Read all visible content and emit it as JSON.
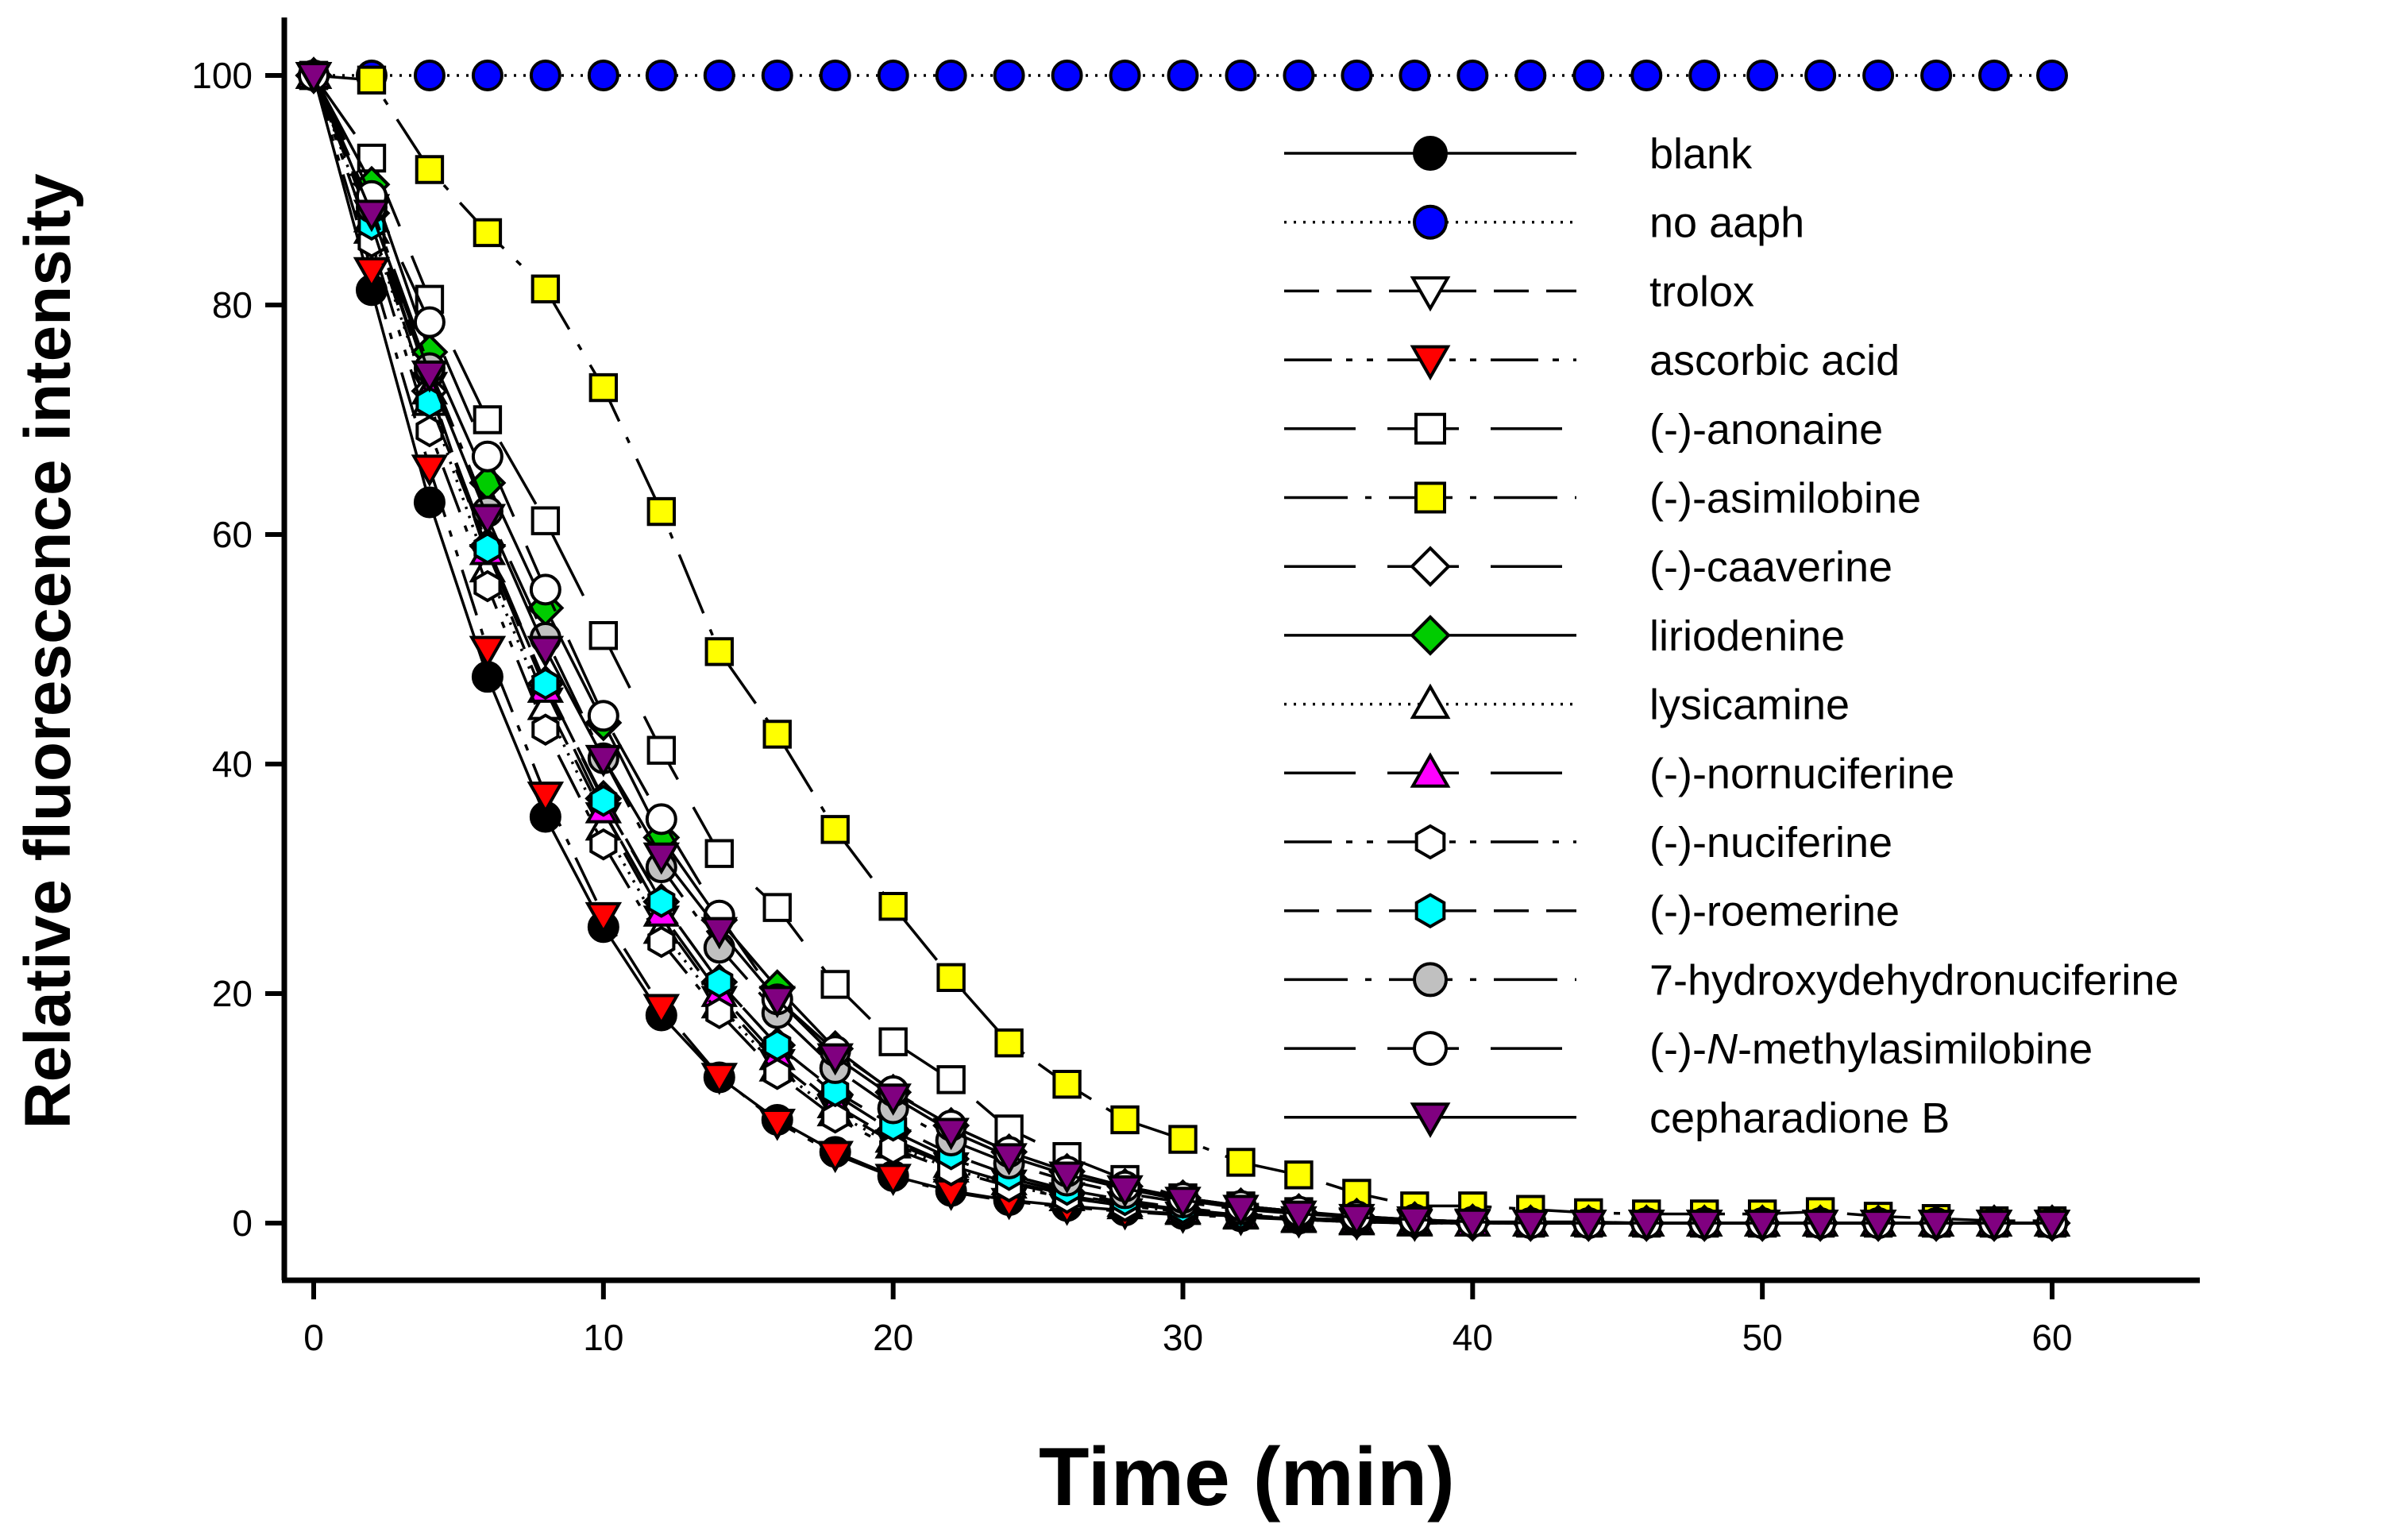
{
  "chart_data": {
    "type": "line",
    "title": "",
    "xlabel": "Time (min)",
    "ylabel": "Relative fluorescence intensity",
    "xlim": [
      -1,
      65
    ],
    "ylim": [
      -5,
      105
    ],
    "xticks": [
      0,
      10,
      20,
      30,
      40,
      50,
      60
    ],
    "yticks": [
      0,
      20,
      40,
      60,
      80,
      100
    ],
    "grid": false,
    "legend_position": "top-right",
    "x": [
      0,
      2,
      4,
      6,
      8,
      10,
      12,
      14,
      16,
      18,
      20,
      22,
      24,
      26,
      28,
      30,
      32,
      34,
      36,
      38,
      40,
      42,
      44,
      46,
      48,
      50,
      52,
      54,
      56,
      58,
      60
    ],
    "series": [
      {
        "name": "blank",
        "marker": "circle",
        "color": "#000000",
        "dash": "solid",
        "values": [
          100,
          81.3,
          62.8,
          47.6,
          35.4,
          25.8,
          18.1,
          12.7,
          9.0,
          6.2,
          4.1,
          2.8,
          2.0,
          1.5,
          1.1,
          0.8,
          0.6,
          0.4,
          0.3,
          0.2,
          0.1,
          0.1,
          0.1,
          0,
          0,
          0,
          0,
          0,
          0,
          0,
          0
        ]
      },
      {
        "name": "no aaph",
        "marker": "circle",
        "color": "#0000ff",
        "dash": "dotted",
        "values": [
          100,
          100,
          100,
          100,
          100,
          100,
          100,
          100,
          100,
          100,
          100,
          100,
          100,
          100,
          100,
          100,
          100,
          100,
          100,
          100,
          100,
          100,
          100,
          100,
          100,
          100,
          100,
          100,
          100,
          100,
          100
        ]
      },
      {
        "name": "trolox",
        "marker": "triangle-down",
        "color": "#ffffff",
        "dash": "dash",
        "values": [
          100,
          88.5,
          73.0,
          58.0,
          45.5,
          35.5,
          26.5,
          19.5,
          14.0,
          10.0,
          7.0,
          5.0,
          3.5,
          2.4,
          1.6,
          1.1,
          0.6,
          0.3,
          0.1,
          0,
          0,
          0,
          0,
          0,
          0,
          0,
          0,
          0,
          0,
          0,
          0
        ]
      },
      {
        "name": "ascorbic acid",
        "marker": "triangle-down",
        "color": "#ff0000",
        "dash": "dash-dot-dot",
        "values": [
          100,
          83.0,
          65.8,
          50.0,
          37.3,
          26.8,
          18.8,
          12.8,
          8.8,
          6.0,
          4.0,
          2.7,
          1.9,
          1.4,
          1.0,
          0.7,
          0.5,
          0.3,
          0.2,
          0.1,
          0.1,
          0,
          0,
          0,
          0,
          0,
          0,
          0,
          0,
          0,
          0
        ]
      },
      {
        "name": "(-)-anonaine",
        "marker": "square",
        "color": "#ffffff",
        "dash": "long-dash",
        "values": [
          100,
          92.8,
          80.5,
          70.0,
          61.2,
          51.2,
          41.2,
          32.2,
          27.5,
          20.8,
          15.8,
          12.5,
          8.2,
          5.8,
          3.8,
          2.2,
          1.5,
          1.0,
          0.5,
          0.2,
          0.1,
          0,
          0,
          0,
          0,
          0,
          0,
          0,
          0,
          0,
          0
        ]
      },
      {
        "name": "(-)-asimilobine",
        "marker": "square",
        "color": "#ffff00",
        "dash": "long-dash-dot",
        "values": [
          100,
          99.6,
          91.8,
          86.3,
          81.4,
          72.8,
          62.0,
          49.8,
          42.6,
          34.3,
          27.6,
          21.4,
          15.7,
          12.1,
          9.0,
          7.3,
          5.3,
          4.2,
          2.6,
          1.5,
          1.5,
          1.2,
          0.9,
          0.8,
          0.8,
          0.8,
          1.0,
          0.6,
          0.4,
          0.2,
          0.2
        ]
      },
      {
        "name": "(-)-caaverine",
        "marker": "diamond",
        "color": "#ffffff",
        "dash": "long-dash",
        "values": [
          100,
          88.0,
          72.5,
          59.0,
          47.0,
          37.0,
          28.0,
          21.0,
          15.5,
          11.2,
          8.0,
          5.6,
          3.9,
          2.7,
          1.8,
          1.2,
          0.7,
          0.4,
          0.2,
          0.1,
          0,
          0,
          0,
          0,
          0,
          0,
          0,
          0,
          0,
          0,
          0
        ]
      },
      {
        "name": "liriodenine",
        "marker": "diamond",
        "color": "#00cc00",
        "dash": "solid",
        "values": [
          100,
          90.5,
          75.9,
          64.5,
          53.6,
          43.6,
          33.6,
          26.4,
          20.5,
          15.2,
          11.4,
          8.5,
          6.2,
          4.5,
          3.2,
          2.2,
          1.5,
          1.0,
          0.6,
          0.3,
          0.1,
          0,
          0,
          0,
          0,
          0,
          0,
          0,
          0,
          0,
          0
        ]
      },
      {
        "name": "lysicamine",
        "marker": "triangle-up",
        "color": "#ffffff",
        "dash": "dotted",
        "values": [
          100,
          86.5,
          71.5,
          57.0,
          45.0,
          34.5,
          25.5,
          19.0,
          13.5,
          9.6,
          6.8,
          4.7,
          3.3,
          2.2,
          1.5,
          1.0,
          0.6,
          0.3,
          0.1,
          0,
          0,
          0,
          0,
          0,
          0,
          0,
          0,
          0,
          0,
          0,
          0
        ]
      },
      {
        "name": "(-)-nornuciferine",
        "marker": "triangle-up",
        "color": "#ff00ff",
        "dash": "long-dash",
        "values": [
          100,
          87.5,
          72.5,
          58.5,
          46.5,
          36.0,
          27.0,
          20.0,
          14.5,
          10.3,
          7.3,
          5.1,
          3.6,
          2.5,
          1.7,
          1.1,
          0.7,
          0.4,
          0.2,
          0.1,
          0,
          0,
          0,
          0,
          0,
          0,
          0,
          0,
          0,
          0,
          0
        ]
      },
      {
        "name": "(-)-nuciferine",
        "marker": "hexagon",
        "color": "#ffffff",
        "dash": "dash-dot-dot",
        "values": [
          100,
          85.5,
          69.0,
          55.5,
          43.0,
          33.0,
          24.5,
          18.3,
          13.0,
          9.2,
          6.5,
          4.6,
          3.2,
          2.2,
          1.5,
          1.0,
          0.6,
          0.3,
          0.1,
          0,
          0,
          0,
          0,
          0,
          0,
          0,
          0,
          0,
          0,
          0,
          0
        ]
      },
      {
        "name": "(-)-roemerine",
        "marker": "hexagon",
        "color": "#00ffff",
        "dash": "dash",
        "values": [
          100,
          87.0,
          71.5,
          58.8,
          47.0,
          36.8,
          28.0,
          21.0,
          15.5,
          11.5,
          8.5,
          6.0,
          4.2,
          2.9,
          2.0,
          1.3,
          0.8,
          0.5,
          0.3,
          0.1,
          0,
          0,
          0,
          0,
          0,
          0,
          0,
          0,
          0,
          0,
          0
        ]
      },
      {
        "name": "7-hydroxydehydronuciferine",
        "marker": "circle",
        "color": "#c0c0c0",
        "dash": "long-dash-dot",
        "values": [
          100,
          88.5,
          74.5,
          62.0,
          51.0,
          40.5,
          31.0,
          24.0,
          18.3,
          13.5,
          10.0,
          7.2,
          5.2,
          3.7,
          2.6,
          1.8,
          1.2,
          0.8,
          0.5,
          0.3,
          0.1,
          0,
          0,
          0,
          0,
          0,
          0,
          0,
          0,
          0,
          0
        ]
      },
      {
        "name": "(-)-N-methylasimilobine",
        "marker": "circle",
        "color": "#ffffff",
        "dash": "long-dash",
        "values": [
          100,
          89.5,
          78.5,
          66.8,
          55.2,
          44.2,
          35.2,
          26.8,
          19.5,
          15.0,
          11.5,
          8.5,
          6.2,
          4.5,
          3.2,
          2.2,
          1.5,
          1.0,
          0.6,
          0.3,
          0.1,
          0,
          0,
          0,
          0,
          0,
          0,
          0,
          0,
          0,
          0
        ]
      },
      {
        "name": "cepharadione B",
        "marker": "triangle-down",
        "color": "#800080",
        "dash": "solid",
        "values": [
          100,
          88.0,
          74.0,
          61.5,
          50.0,
          40.5,
          32.0,
          25.5,
          19.5,
          14.5,
          11.0,
          8.0,
          5.8,
          4.2,
          3.0,
          2.0,
          1.3,
          0.8,
          0.5,
          0.3,
          0.1,
          0,
          0,
          0,
          0,
          0,
          0,
          0,
          0,
          0,
          0
        ]
      }
    ]
  },
  "legend": {
    "items": [
      {
        "prefix": "blank",
        "italic": "",
        "suffix": ""
      },
      {
        "prefix": "no aaph",
        "italic": "",
        "suffix": ""
      },
      {
        "prefix": "trolox",
        "italic": "",
        "suffix": ""
      },
      {
        "prefix": "ascorbic acid",
        "italic": "",
        "suffix": ""
      },
      {
        "prefix": "(-)-anonaine",
        "italic": "",
        "suffix": ""
      },
      {
        "prefix": "(-)-asimilobine",
        "italic": "",
        "suffix": ""
      },
      {
        "prefix": "(-)-caaverine",
        "italic": "",
        "suffix": ""
      },
      {
        "prefix": "liriodenine",
        "italic": "",
        "suffix": ""
      },
      {
        "prefix": "lysicamine",
        "italic": "",
        "suffix": ""
      },
      {
        "prefix": "(-)-nornuciferine",
        "italic": "",
        "suffix": ""
      },
      {
        "prefix": "(-)-nuciferine",
        "italic": "",
        "suffix": ""
      },
      {
        "prefix": "(-)-roemerine",
        "italic": "",
        "suffix": ""
      },
      {
        "prefix": "7-hydroxydehydronuciferine",
        "italic": "",
        "suffix": ""
      },
      {
        "prefix": "(-)-",
        "italic": "N",
        "suffix": "-methylasimilobine"
      },
      {
        "prefix": "cepharadione B",
        "italic": "",
        "suffix": ""
      }
    ]
  }
}
